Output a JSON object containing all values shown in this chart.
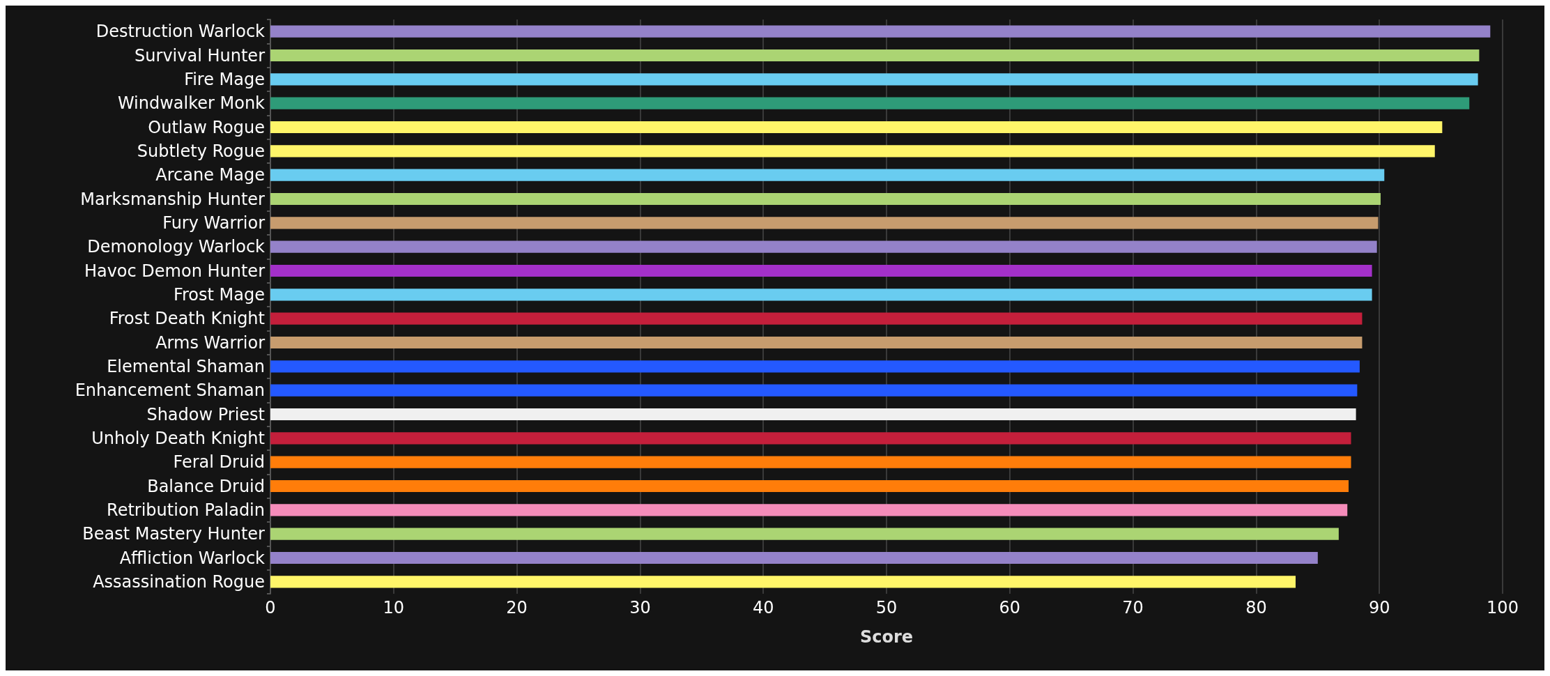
{
  "chart_data": {
    "type": "bar",
    "orientation": "horizontal",
    "xlabel": "Score",
    "categories": [
      "Destruction Warlock",
      "Survival Hunter",
      "Fire Mage",
      "Windwalker Monk",
      "Outlaw Rogue",
      "Subtlety Rogue",
      "Arcane Mage",
      "Marksmanship Hunter",
      "Fury Warrior",
      "Demonology Warlock",
      "Havoc Demon Hunter",
      "Frost Mage",
      "Frost Death Knight",
      "Arms Warrior",
      "Elemental Shaman",
      "Enhancement Shaman",
      "Shadow Priest",
      "Unholy Death Knight",
      "Feral Druid",
      "Balance Druid",
      "Retribution Paladin",
      "Beast Mastery Hunter",
      "Affliction Warlock",
      "Assassination Rogue"
    ],
    "values": [
      99.0,
      98.1,
      98.0,
      97.3,
      95.1,
      94.5,
      90.4,
      90.1,
      89.9,
      89.8,
      89.4,
      89.4,
      88.6,
      88.6,
      88.4,
      88.2,
      88.1,
      87.7,
      87.7,
      87.5,
      87.4,
      86.7,
      85.0,
      83.2
    ],
    "colors": [
      "#9482c9",
      "#abd473",
      "#69ccf0",
      "#2e9b78",
      "#fff569",
      "#fff569",
      "#69ccf0",
      "#abd473",
      "#c79c6e",
      "#9482c9",
      "#a330c9",
      "#69ccf0",
      "#c41f3b",
      "#c79c6e",
      "#2459ff",
      "#2459ff",
      "#f0f0f0",
      "#c41f3b",
      "#ff7d0a",
      "#ff7d0a",
      "#f58cba",
      "#abd473",
      "#9482c9",
      "#fff569"
    ],
    "xlim": [
      0,
      100
    ],
    "xticks": [
      0,
      10,
      20,
      30,
      40,
      50,
      60,
      70,
      80,
      90,
      100
    ],
    "grid": "x"
  }
}
